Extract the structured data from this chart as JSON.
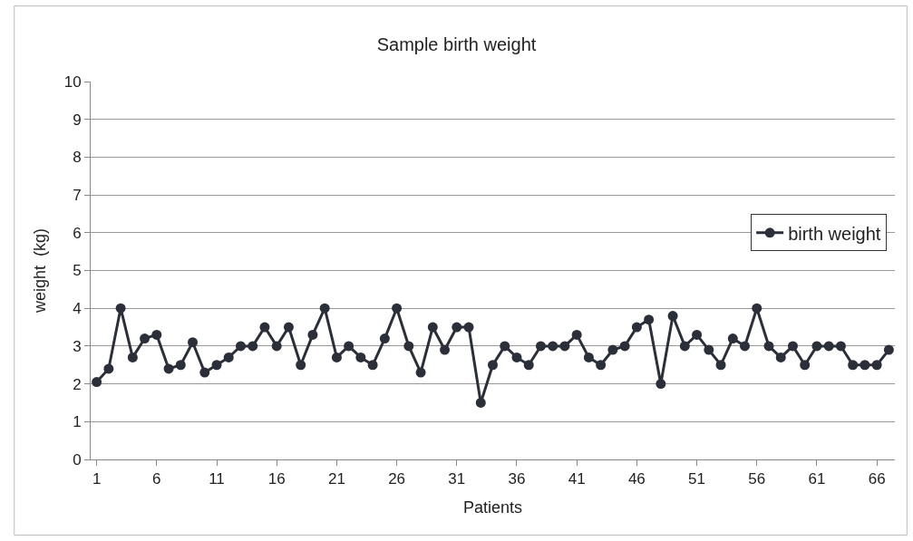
{
  "chart_data": {
    "type": "line",
    "title": "Sample birth weight",
    "xlabel": "Patients",
    "ylabel": "weight  (kg)",
    "x": [
      1,
      2,
      3,
      4,
      5,
      6,
      7,
      8,
      9,
      10,
      11,
      12,
      13,
      14,
      15,
      16,
      17,
      18,
      19,
      20,
      21,
      22,
      23,
      24,
      25,
      26,
      27,
      28,
      29,
      30,
      31,
      32,
      33,
      34,
      35,
      36,
      37,
      38,
      39,
      40,
      41,
      42,
      43,
      44,
      45,
      46,
      47,
      48,
      49,
      50,
      51,
      52,
      53,
      54,
      55,
      56,
      57,
      58,
      59,
      60,
      61,
      62,
      63,
      64,
      65,
      66,
      67
    ],
    "series": [
      {
        "name": "birth weight",
        "color": "#2b2f3a",
        "values": [
          2.05,
          2.4,
          4.0,
          2.7,
          3.2,
          3.3,
          2.4,
          2.5,
          3.1,
          2.3,
          2.5,
          2.7,
          3.0,
          3.0,
          3.5,
          3.0,
          3.5,
          2.5,
          3.3,
          4.0,
          2.7,
          3.0,
          2.7,
          2.5,
          3.2,
          4.0,
          3.0,
          2.3,
          3.5,
          2.9,
          3.5,
          3.5,
          1.5,
          2.5,
          3.0,
          2.7,
          2.5,
          3.0,
          3.0,
          3.0,
          3.3,
          2.7,
          2.5,
          2.9,
          3.0,
          3.5,
          3.7,
          2.0,
          3.8,
          3.0,
          3.3,
          2.9,
          2.5,
          3.2,
          3.0,
          4.0,
          3.0,
          2.7,
          3.0,
          2.5,
          3.0,
          3.0,
          3.0,
          2.5,
          2.5,
          2.5,
          2.9
        ]
      }
    ],
    "xlim": [
      0.5,
      67.5
    ],
    "xticks": [
      1,
      6,
      11,
      16,
      21,
      26,
      31,
      36,
      41,
      46,
      51,
      56,
      61,
      66
    ],
    "ylim": [
      0,
      10
    ],
    "yticks": [
      0,
      1,
      2,
      3,
      4,
      5,
      6,
      7,
      8,
      9,
      10
    ],
    "grid": "y",
    "legend": "right",
    "marker": "circle",
    "line_style": "solid"
  }
}
